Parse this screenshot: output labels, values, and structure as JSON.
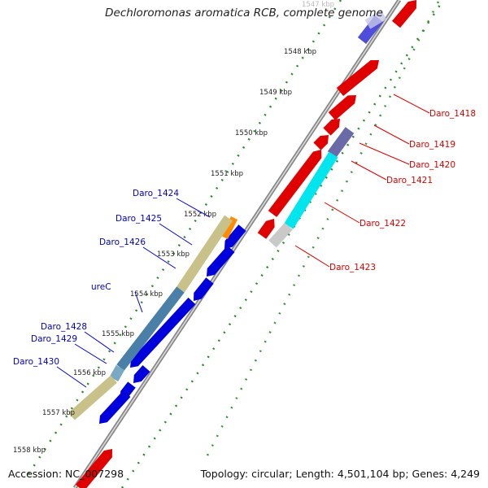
{
  "title": "Dechloromonas aromatica RCB, complete genome",
  "footer": {
    "accession": "Accession: NC_007298",
    "topology": "Topology: circular; Length: 4,501,104 bp; Genes: 4,249"
  },
  "scale_labels": [
    "1547 kbp",
    "1548 kbp",
    "1549 kbp",
    "1550 kbp",
    "1551 kbp",
    "1552 kbp",
    "1553 kbp",
    "1554 kbp",
    "1555 kbp",
    "1556 kbp",
    "1557 kbp",
    "1558 kbp"
  ],
  "genes_reverse": [
    "Daro_1424",
    "Daro_1425",
    "Daro_1426",
    "ureC",
    "Daro_1428",
    "Daro_1429",
    "Daro_1430"
  ],
  "genes_forward": [
    "Daro_1418",
    "Daro_1419",
    "Daro_1420",
    "Daro_1421",
    "Daro_1422",
    "Daro_1423"
  ],
  "colors": {
    "forward_cds": "#e00000",
    "reverse_cds": "#0000dd",
    "reverse_label": "#0000cc",
    "forward_label": "#dd0000",
    "backbone": "#777777",
    "gc_dots": "#2a8a2a",
    "cyan": "#00e5ee",
    "tan": "#c8c28a",
    "steel": "#4a7fa8",
    "orange": "#ff8c00",
    "navy": "#5a5aa0"
  }
}
